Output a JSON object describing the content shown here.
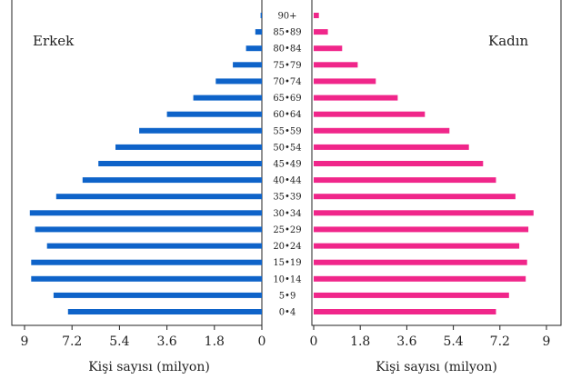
{
  "chart_data": {
    "type": "bar",
    "subtype": "population-pyramid",
    "age_groups": [
      "90+",
      "85-89",
      "80-84",
      "75-79",
      "70-74",
      "65-69",
      "60-64",
      "55-59",
      "50-54",
      "45-49",
      "40-44",
      "35-39",
      "30-34",
      "25-29",
      "20-24",
      "15-19",
      "10-14",
      "5-9",
      "0-4"
    ],
    "age_group_labels": [
      "90+",
      "85•89",
      "80•84",
      "75•79",
      "70•74",
      "65•69",
      "60•64",
      "55•59",
      "50•54",
      "45•49",
      "40•44",
      "35•39",
      "30•34",
      "25•29",
      "20•24",
      "15•19",
      "10•14",
      "5•9",
      "0•4"
    ],
    "series": [
      {
        "name": "Erkek",
        "color": "#0e63c9",
        "values": [
          0.05,
          0.25,
          0.6,
          1.1,
          1.75,
          2.6,
          3.6,
          4.65,
          5.55,
          6.2,
          6.8,
          7.8,
          8.8,
          8.6,
          8.15,
          8.75,
          8.75,
          7.9,
          7.35
        ]
      },
      {
        "name": "Kadın",
        "color": "#f0268a",
        "values": [
          0.2,
          0.55,
          1.1,
          1.7,
          2.4,
          3.25,
          4.3,
          5.25,
          6.0,
          6.55,
          7.05,
          7.8,
          8.5,
          8.3,
          7.95,
          8.25,
          8.2,
          7.55,
          7.05
        ]
      }
    ],
    "xlabel_left": "Kişi sayısı (milyon)",
    "xlabel_right": "Kişi sayısı (milyon)",
    "ticks": [
      "9",
      "7.2",
      "5.4",
      "3.6",
      "1.8",
      "0"
    ],
    "ticks_right": [
      "0",
      "1.8",
      "3.6",
      "5.4",
      "7.2",
      "9"
    ],
    "xlim": [
      0,
      9
    ]
  }
}
